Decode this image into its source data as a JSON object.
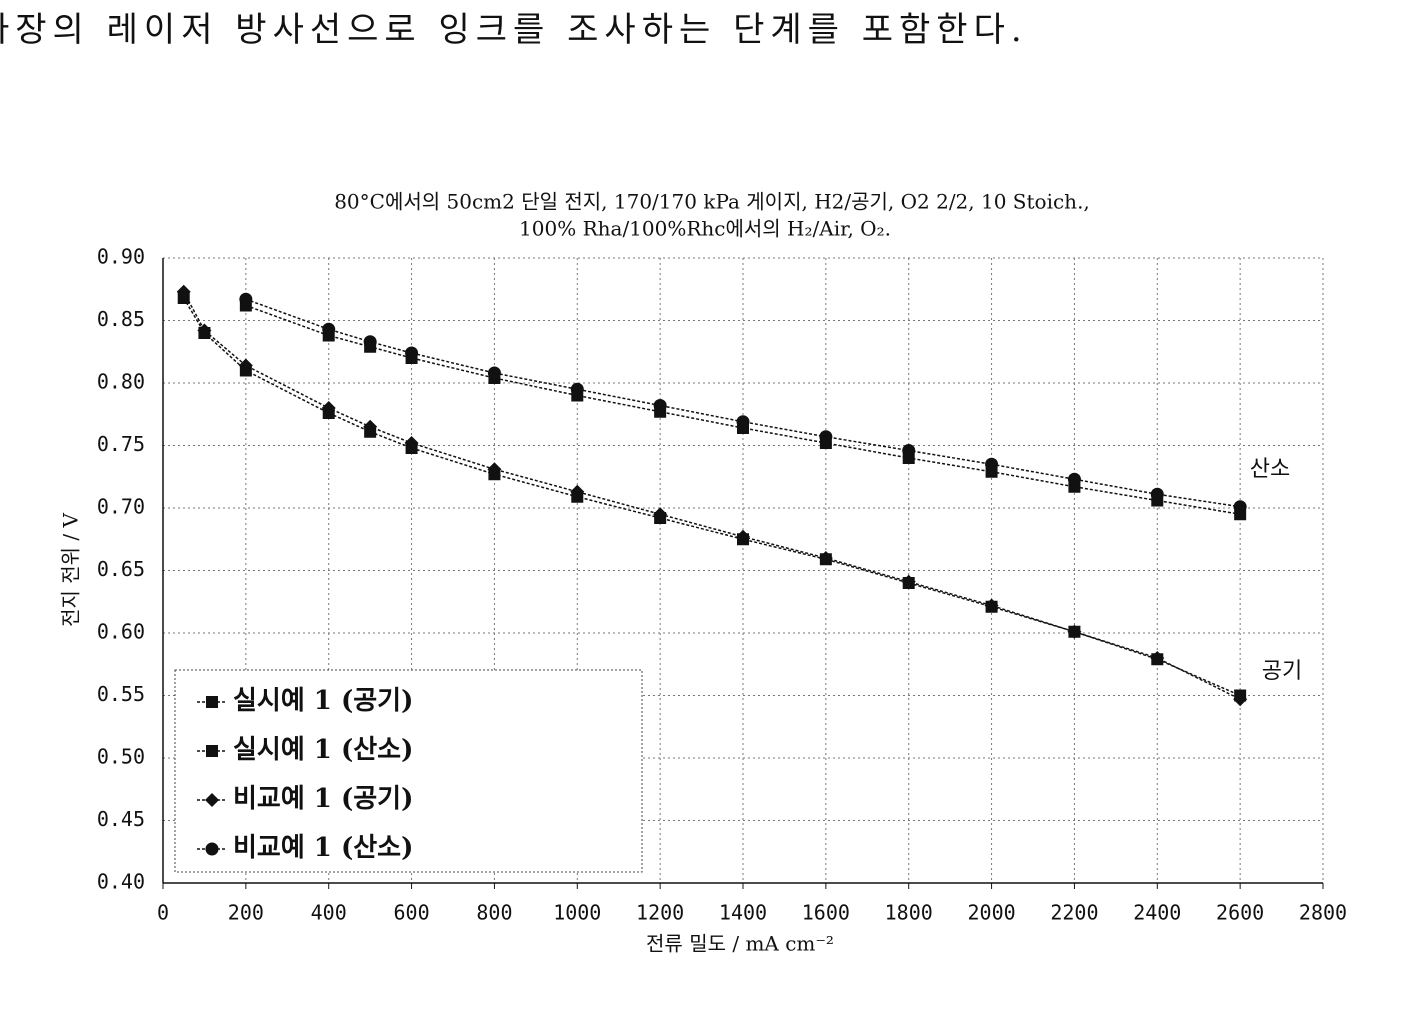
{
  "page_text": "파장의 레이저 방사선으로 잉크를 조사하는 단계를 포함한다.",
  "chart_data": {
    "type": "line",
    "title": "80°C에서의 50cm2 단일 전지, 170/170 kPa 게이지, H2/공기, O2 2/2, 10 Stoich.,",
    "subtitle": "100% Rha/100%Rhc에서의 H₂/Air, O₂.",
    "x_label": "전류 밀도 / mA cm⁻²",
    "y_label": "전지 전위 / V",
    "xlim": [
      0,
      2800
    ],
    "xticks": [
      0,
      200,
      400,
      600,
      800,
      1000,
      1200,
      1400,
      1600,
      1800,
      2000,
      2200,
      2400,
      2600,
      2800
    ],
    "ylim": [
      0.4,
      0.9
    ],
    "yticks": [
      {
        "value": 0.4,
        "label": "0.40"
      },
      0.45,
      {
        "value": 0.5,
        "label": "0.50"
      },
      0.55,
      {
        "value": 0.6,
        "label": "0.60"
      },
      0.65,
      {
        "value": 0.7,
        "label": "0.70"
      },
      0.75,
      {
        "value": 0.8,
        "label": "0.80"
      },
      0.85,
      {
        "value": 0.9,
        "label": "0.90"
      }
    ],
    "grid": true,
    "legend": "bottom-left",
    "series": [
      {
        "name": "실시예 1 (공기)",
        "color": "#111111",
        "marker": "square",
        "x": [
          50,
          100,
          200,
          400,
          500,
          600,
          800,
          1000,
          1200,
          1400,
          1600,
          1800,
          2000,
          2200,
          2400,
          2600
        ],
        "values": [
          0.868,
          0.84,
          0.81,
          0.776,
          0.761,
          0.748,
          0.727,
          0.709,
          0.692,
          0.675,
          0.659,
          0.64,
          0.621,
          0.601,
          0.579,
          0.55
        ]
      },
      {
        "name": "실시예 1 (산소)",
        "color": "#111111",
        "marker": "square",
        "x": [
          200,
          400,
          500,
          600,
          800,
          1000,
          1200,
          1400,
          1600,
          1800,
          2000,
          2200,
          2400,
          2600
        ],
        "values": [
          0.862,
          0.838,
          0.829,
          0.82,
          0.804,
          0.79,
          0.777,
          0.764,
          0.752,
          0.74,
          0.729,
          0.717,
          0.706,
          0.695
        ]
      },
      {
        "name": "비교예 1 (공기)",
        "color": "#111111",
        "marker": "diamond",
        "x": [
          50,
          100,
          200,
          400,
          500,
          600,
          800,
          1000,
          1200,
          1400,
          1600,
          1800,
          2000,
          2200,
          2400,
          2600
        ],
        "values": [
          0.873,
          0.842,
          0.814,
          0.78,
          0.765,
          0.752,
          0.731,
          0.713,
          0.695,
          0.677,
          0.66,
          0.641,
          0.622,
          0.601,
          0.58,
          0.547
        ]
      },
      {
        "name": "비교예 1 (산소)",
        "color": "#111111",
        "marker": "circle",
        "x": [
          200,
          400,
          500,
          600,
          800,
          1000,
          1200,
          1400,
          1600,
          1800,
          2000,
          2200,
          2400,
          2600
        ],
        "values": [
          0.867,
          0.843,
          0.833,
          0.824,
          0.808,
          0.795,
          0.782,
          0.769,
          0.757,
          0.746,
          0.735,
          0.723,
          0.711,
          0.701
        ]
      }
    ],
    "annotations": [
      "산소",
      "공기"
    ]
  }
}
